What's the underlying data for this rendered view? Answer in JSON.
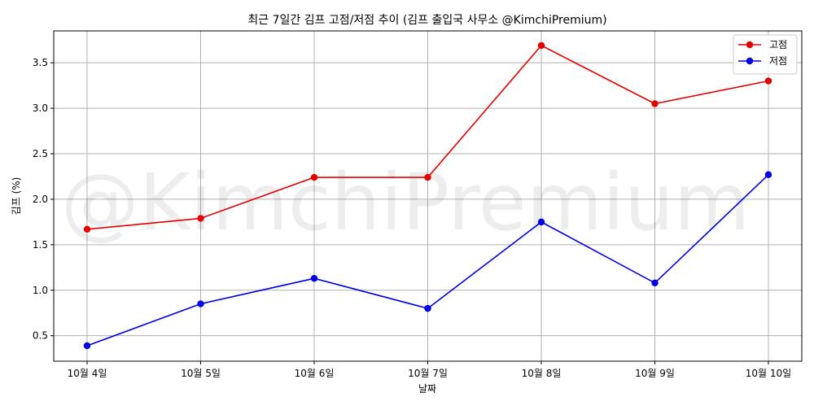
{
  "chart_data": {
    "type": "line",
    "title": "최근 7일간 김프 고점/저점 추이 (김프 출입국 사무소 @KimchiPremium)",
    "xlabel": "날짜",
    "ylabel": "김프 (%)",
    "categories": [
      "10월 4일",
      "10월 5일",
      "10월 6일",
      "10월 7일",
      "10월 8일",
      "10월 9일",
      "10월 10일"
    ],
    "series": [
      {
        "name": "고점",
        "color": "#e50000",
        "marker": "circle",
        "values": [
          1.67,
          1.79,
          2.24,
          2.24,
          3.69,
          3.05,
          3.3
        ]
      },
      {
        "name": "저점",
        "color": "#0000e5",
        "marker": "circle",
        "values": [
          0.39,
          0.85,
          1.13,
          0.8,
          1.75,
          1.08,
          2.27
        ]
      }
    ],
    "ylim": [
      0.22,
      3.85
    ],
    "yticks": [
      0.5,
      1.0,
      1.5,
      2.0,
      2.5,
      3.0,
      3.5
    ],
    "ytick_labels": [
      "0.5",
      "1.0",
      "1.5",
      "2.0",
      "2.5",
      "3.0",
      "3.5"
    ],
    "grid": true,
    "legend_position": "top-right",
    "watermark": "@KimchiPremium"
  }
}
